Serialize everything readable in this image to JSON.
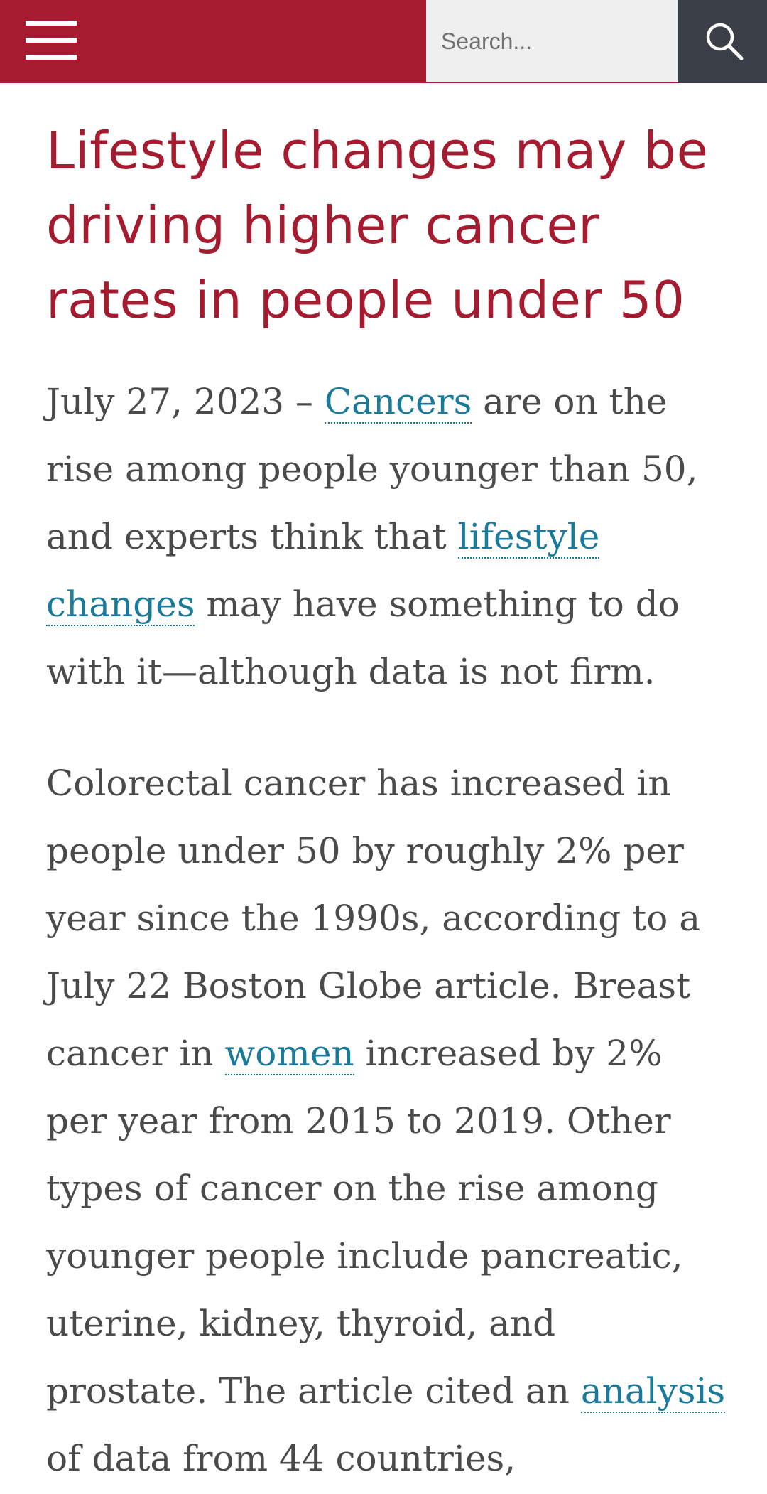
{
  "header": {
    "search_placeholder": "Search...",
    "brand_color": "#a51c30",
    "menu_icon": "hamburger-menu-icon",
    "search_icon": "magnifier-icon"
  },
  "article": {
    "title": "Lifestyle changes may be driving higher cancer rates in people under 50",
    "p1": {
      "date_prefix": "July 27, 2023 – ",
      "link_cancers": "Cancers",
      "text_a": " are on the rise among people younger than 50, and experts think that ",
      "link_lifestyle": "lifestyle changes",
      "text_b": " may have something to do with it—although data is not firm."
    },
    "p2": {
      "text_a": "Colorectal cancer has increased in people under 50 by roughly 2% per year since the 1990s, according to a July 22 Boston Globe article. Breast cancer in ",
      "link_women": "women",
      "text_b": " increased by 2% per year from 2015 to 2019. Other types of cancer on the rise among younger people include pancreatic, uterine, kidney, thyroid, and prostate. The article cited an ",
      "link_analysis": "analysis",
      "text_c": " of data from 44 countries,"
    },
    "link_color": "#1a7a9c"
  }
}
